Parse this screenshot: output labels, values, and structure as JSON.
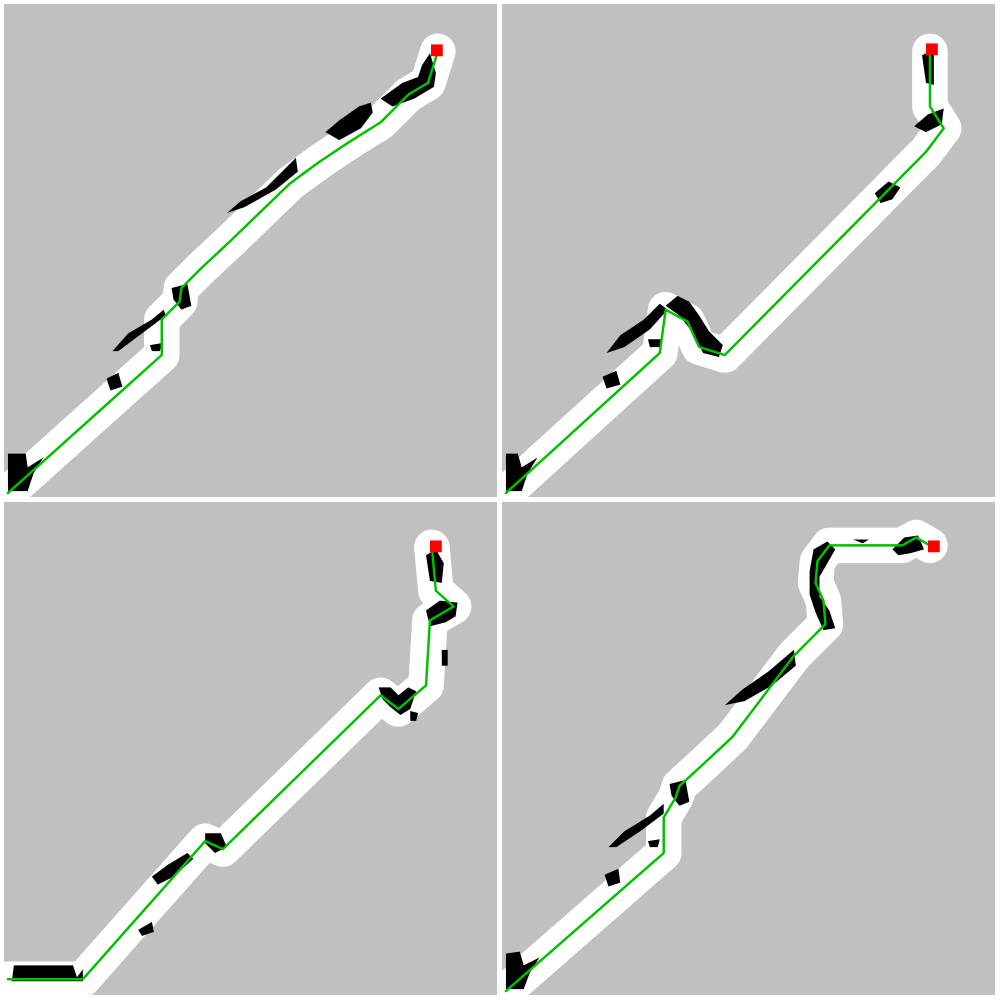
{
  "colors": {
    "background": "#ffffff",
    "unexplored": "#c0c0c0",
    "free_space": "#ffffff",
    "obstacle": "#000000",
    "path": "#00c000",
    "goal": "#ff0000"
  },
  "panels": [
    {
      "name": "panel-top-left",
      "path_points": [
        [
          4,
          496
        ],
        [
          160,
          356
        ],
        [
          160,
          320
        ],
        [
          178,
          302
        ],
        [
          180,
          288
        ],
        [
          200,
          268
        ],
        [
          230,
          240
        ],
        [
          290,
          182
        ],
        [
          320,
          160
        ],
        [
          350,
          140
        ],
        [
          382,
          120
        ],
        [
          410,
          92
        ],
        [
          430,
          80
        ],
        [
          440,
          48
        ]
      ],
      "obstacles": [
        [
          [
            4,
            456
          ],
          [
            22,
            456
          ],
          [
            24,
            470
          ],
          [
            40,
            460
          ],
          [
            30,
            476
          ],
          [
            24,
            494
          ],
          [
            4,
            494
          ]
        ],
        [
          [
            110,
            352
          ],
          [
            126,
            334
          ],
          [
            150,
            320
          ],
          [
            162,
            310
          ],
          [
            164,
            316
          ],
          [
            140,
            334
          ],
          [
            116,
            352
          ]
        ],
        [
          [
            104,
            380
          ],
          [
            116,
            374
          ],
          [
            120,
            388
          ],
          [
            108,
            392
          ]
        ],
        [
          [
            148,
            346
          ],
          [
            160,
            344
          ],
          [
            158,
            352
          ],
          [
            150,
            352
          ]
        ],
        [
          [
            170,
            288
          ],
          [
            186,
            284
          ],
          [
            190,
            306
          ],
          [
            180,
            310
          ],
          [
            172,
            300
          ]
        ],
        [
          [
            226,
            212
          ],
          [
            240,
            200
          ],
          [
            266,
            186
          ],
          [
            296,
            156
          ],
          [
            298,
            170
          ],
          [
            276,
            188
          ],
          [
            244,
            206
          ]
        ],
        [
          [
            326,
            130
          ],
          [
            340,
            118
          ],
          [
            360,
            104
          ],
          [
            372,
            100
          ],
          [
            374,
            110
          ],
          [
            362,
            126
          ],
          [
            340,
            138
          ]
        ],
        [
          [
            382,
            96
          ],
          [
            404,
            80
          ],
          [
            420,
            74
          ],
          [
            424,
            62
          ],
          [
            432,
            50
          ],
          [
            438,
            70
          ],
          [
            436,
            84
          ],
          [
            416,
            96
          ],
          [
            394,
            104
          ]
        ]
      ],
      "goal": [
        439,
        47
      ]
    },
    {
      "name": "panel-top-right",
      "path_points": [
        [
          4,
          496
        ],
        [
          160,
          354
        ],
        [
          166,
          310
        ],
        [
          188,
          322
        ],
        [
          200,
          348
        ],
        [
          226,
          356
        ],
        [
          430,
          150
        ],
        [
          448,
          126
        ],
        [
          434,
          104
        ],
        [
          434,
          48
        ]
      ],
      "obstacles": [
        [
          [
            4,
            456
          ],
          [
            16,
            456
          ],
          [
            20,
            470
          ],
          [
            36,
            460
          ],
          [
            26,
            476
          ],
          [
            20,
            494
          ],
          [
            4,
            494
          ]
        ],
        [
          [
            106,
            354
          ],
          [
            120,
            336
          ],
          [
            144,
            320
          ],
          [
            160,
            304
          ],
          [
            168,
            310
          ],
          [
            150,
            330
          ],
          [
            124,
            348
          ]
        ],
        [
          [
            102,
            378
          ],
          [
            116,
            372
          ],
          [
            120,
            386
          ],
          [
            106,
            390
          ]
        ],
        [
          [
            148,
            340
          ],
          [
            162,
            340
          ],
          [
            160,
            348
          ],
          [
            150,
            348
          ]
        ],
        [
          [
            166,
            306
          ],
          [
            178,
            296
          ],
          [
            190,
            302
          ],
          [
            200,
            316
          ],
          [
            210,
            332
          ],
          [
            224,
            346
          ],
          [
            220,
            358
          ],
          [
            204,
            354
          ],
          [
            194,
            334
          ],
          [
            180,
            316
          ]
        ],
        [
          [
            378,
            192
          ],
          [
            392,
            180
          ],
          [
            404,
            186
          ],
          [
            396,
            198
          ],
          [
            384,
            202
          ]
        ],
        [
          [
            418,
            124
          ],
          [
            432,
            112
          ],
          [
            448,
            106
          ],
          [
            446,
            122
          ],
          [
            430,
            130
          ]
        ],
        [
          [
            426,
            52
          ],
          [
            438,
            46
          ],
          [
            438,
            82
          ],
          [
            430,
            80
          ]
        ]
      ],
      "goal": [
        436,
        46
      ]
    },
    {
      "name": "panel-bottom-left",
      "path_points": [
        [
          4,
          484
        ],
        [
          80,
          484
        ],
        [
          204,
          344
        ],
        [
          222,
          352
        ],
        [
          382,
          196
        ],
        [
          400,
          210
        ],
        [
          428,
          186
        ],
        [
          432,
          120
        ],
        [
          456,
          106
        ],
        [
          438,
          90
        ],
        [
          434,
          46
        ]
      ],
      "obstacles": [
        [
          [
            10,
            470
          ],
          [
            70,
            470
          ],
          [
            74,
            482
          ],
          [
            80,
            474
          ],
          [
            80,
            486
          ],
          [
            8,
            486
          ]
        ],
        [
          [
            150,
            380
          ],
          [
            166,
            368
          ],
          [
            186,
            356
          ],
          [
            192,
            362
          ],
          [
            172,
            380
          ],
          [
            156,
            388
          ]
        ],
        [
          [
            136,
            434
          ],
          [
            150,
            426
          ],
          [
            152,
            436
          ],
          [
            140,
            440
          ]
        ],
        [
          [
            204,
            336
          ],
          [
            220,
            336
          ],
          [
            226,
            350
          ],
          [
            214,
            356
          ],
          [
            204,
            346
          ]
        ],
        [
          [
            380,
            188
          ],
          [
            392,
            188
          ],
          [
            400,
            196
          ],
          [
            410,
            188
          ],
          [
            418,
            192
          ],
          [
            412,
            210
          ],
          [
            402,
            216
          ],
          [
            392,
            208
          ],
          [
            384,
            200
          ]
        ],
        [
          [
            412,
            212
          ],
          [
            420,
            214
          ],
          [
            418,
            222
          ],
          [
            412,
            222
          ]
        ],
        [
          [
            428,
            110
          ],
          [
            442,
            100
          ],
          [
            460,
            102
          ],
          [
            458,
            116
          ],
          [
            448,
            122
          ],
          [
            432,
            126
          ]
        ],
        [
          [
            444,
            150
          ],
          [
            450,
            150
          ],
          [
            450,
            166
          ],
          [
            444,
            166
          ]
        ],
        [
          [
            428,
            54
          ],
          [
            438,
            48
          ],
          [
            446,
            62
          ],
          [
            444,
            82
          ],
          [
            432,
            80
          ]
        ]
      ],
      "goal": [
        438,
        45
      ]
    },
    {
      "name": "panel-bottom-right",
      "path_points": [
        [
          4,
          496
        ],
        [
          164,
          356
        ],
        [
          164,
          320
        ],
        [
          176,
          300
        ],
        [
          180,
          288
        ],
        [
          204,
          266
        ],
        [
          234,
          238
        ],
        [
          296,
          156
        ],
        [
          328,
          124
        ],
        [
          326,
          100
        ],
        [
          318,
          82
        ],
        [
          320,
          60
        ],
        [
          332,
          44
        ],
        [
          406,
          44
        ],
        [
          420,
          36
        ],
        [
          434,
          44
        ]
      ],
      "obstacles": [
        [
          [
            4,
            458
          ],
          [
            18,
            456
          ],
          [
            22,
            470
          ],
          [
            38,
            462
          ],
          [
            28,
            478
          ],
          [
            22,
            494
          ],
          [
            4,
            494
          ]
        ],
        [
          [
            108,
            350
          ],
          [
            124,
            334
          ],
          [
            150,
            318
          ],
          [
            164,
            306
          ],
          [
            164,
            316
          ],
          [
            140,
            334
          ],
          [
            116,
            350
          ]
        ],
        [
          [
            104,
            378
          ],
          [
            118,
            372
          ],
          [
            120,
            386
          ],
          [
            108,
            390
          ]
        ],
        [
          [
            148,
            344
          ],
          [
            160,
            342
          ],
          [
            158,
            350
          ],
          [
            150,
            350
          ]
        ],
        [
          [
            170,
            286
          ],
          [
            186,
            282
          ],
          [
            190,
            304
          ],
          [
            180,
            308
          ],
          [
            172,
            298
          ]
        ],
        [
          [
            226,
            206
          ],
          [
            244,
            190
          ],
          [
            270,
            172
          ],
          [
            296,
            150
          ],
          [
            298,
            166
          ],
          [
            274,
            186
          ],
          [
            246,
            202
          ]
        ],
        [
          [
            316,
            48
          ],
          [
            330,
            40
          ],
          [
            338,
            48
          ],
          [
            330,
            62
          ],
          [
            322,
            76
          ],
          [
            322,
            96
          ],
          [
            332,
            110
          ],
          [
            338,
            128
          ],
          [
            326,
            130
          ],
          [
            318,
            112
          ],
          [
            312,
            94
          ],
          [
            312,
            70
          ]
        ],
        [
          [
            356,
            38
          ],
          [
            372,
            38
          ],
          [
            366,
            42
          ]
        ],
        [
          [
            396,
            48
          ],
          [
            408,
            36
          ],
          [
            422,
            34
          ],
          [
            428,
            48
          ],
          [
            414,
            52
          ],
          [
            402,
            54
          ]
        ]
      ],
      "goal": [
        438,
        45
      ]
    }
  ]
}
